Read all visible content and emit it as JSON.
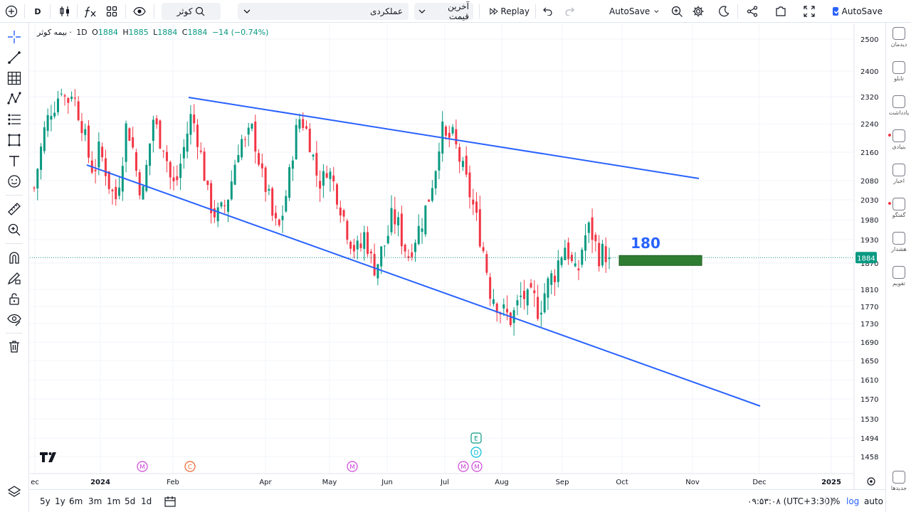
{
  "toolbar": {
    "add_symbol_icon": "plus-circle-icon",
    "interval": "D",
    "symbol_search": "کوثر",
    "study_name": "عملکردی",
    "price_source": "آخرین قیمت",
    "replay": "Replay",
    "autosave": "AutoSave",
    "autosave_checkbox_label": "AutoSave"
  },
  "legend": {
    "symbol": "بیمه کوثر",
    "interval": "1D",
    "o_label": "O",
    "o_value": "1884",
    "h_label": "H",
    "h_value": "1885",
    "l_label": "L",
    "l_value": "1884",
    "c_label": "C",
    "c_value": "1884",
    "change": "−14 (−0.74%)"
  },
  "right_sidebar": [
    {
      "label": "دیدمان",
      "icon": "watchlist-icon"
    },
    {
      "label": "تابلو",
      "icon": "board-icon"
    },
    {
      "label": "یادداشت",
      "icon": "note-icon"
    },
    {
      "label": "بنیادی",
      "icon": "fundamental-icon"
    },
    {
      "label": "اخبار",
      "icon": "news-icon"
    },
    {
      "label": "گفتگو",
      "icon": "chat-icon"
    },
    {
      "label": "هشدار",
      "icon": "alert-icon"
    },
    {
      "label": "تقویم",
      "icon": "calendar-icon"
    },
    {
      "label": "جدیدها",
      "icon": "whats-new-icon"
    }
  ],
  "bottom_bar": {
    "ranges": [
      "5y",
      "1y",
      "6m",
      "3m",
      "1m",
      "5d",
      "1d"
    ],
    "clock": "۰۹:۵۳:۰۸ (UTC+3:30)",
    "percent": "%",
    "log": "log",
    "auto": "auto"
  },
  "colors": {
    "up": "#089981",
    "down": "#f23645",
    "trendline": "#2962ff",
    "target_box": "#2e7d32",
    "price_label_bg": "#089981",
    "grid": "#f0f3fa"
  },
  "chart_data": {
    "type": "candlestick",
    "symbol": "بیمه کوثر",
    "interval": "1D",
    "last_price": 1884,
    "last_price_label": "1884",
    "y_ticks": [
      "2500",
      "2400",
      "2320",
      "2240",
      "2160",
      "2080",
      "2030",
      "1980",
      "1930",
      "1870",
      "1810",
      "1770",
      "1730",
      "1690",
      "1650",
      "1610",
      "1570",
      "1530",
      "1494",
      "1458"
    ],
    "x_ticks": [
      "ec",
      "2024",
      "Feb",
      "Apr",
      "May",
      "Jun",
      "Jul",
      "Aug",
      "Sep",
      "Oct",
      "Nov",
      "Dec",
      "2025"
    ],
    "annotation_text": "180",
    "target_box": {
      "from_price": 1884,
      "to_price": 1870,
      "start": "Oct",
      "end": "Nov"
    },
    "trendlines": [
      {
        "name": "upper-channel",
        "from": {
          "date": "Mar",
          "price": 2310
        },
        "to": {
          "date": "Nov",
          "price": 2085
        }
      },
      {
        "name": "lower-channel",
        "from": {
          "date": "Dec-2023",
          "price": 2140
        },
        "to": {
          "date": "Dec",
          "price": 1560
        }
      }
    ],
    "event_markers": [
      {
        "label": "M",
        "date": "Jan",
        "kind": "dividend"
      },
      {
        "label": "C",
        "date": "Feb",
        "kind": "corporate"
      },
      {
        "label": "M",
        "date": "May",
        "kind": "dividend"
      },
      {
        "label": "E",
        "date": "Jul",
        "kind": "earnings"
      },
      {
        "label": "D",
        "date": "Jul",
        "kind": "dividend"
      },
      {
        "label": "M",
        "date": "Jul",
        "kind": "dividend"
      },
      {
        "label": "M",
        "date": "Jul",
        "kind": "dividend"
      }
    ],
    "price_path": [
      2060,
      2150,
      2230,
      2280,
      2300,
      2350,
      2300,
      2340,
      2280,
      2230,
      2150,
      2100,
      2170,
      2120,
      2060,
      2030,
      2110,
      2240,
      2190,
      2090,
      2040,
      2150,
      2260,
      2200,
      2180,
      2090,
      2060,
      2130,
      2200,
      2270,
      2210,
      2130,
      2040,
      2000,
      1990,
      2010,
      2050,
      2130,
      2200,
      2180,
      2230,
      2170,
      2090,
      2050,
      1980,
      1950,
      2010,
      2090,
      2200,
      2260,
      2230,
      2180,
      2100,
      2070,
      2120,
      2080,
      2040,
      1990,
      1940,
      1910,
      1900,
      1950,
      1880,
      1860,
      1900,
      1930,
      1990,
      1970,
      1920,
      1890,
      1930,
      1960,
      2000,
      2050,
      2120,
      2230,
      2190,
      2210,
      2160,
      2110,
      2060,
      2010,
      1950,
      1890,
      1810,
      1790,
      1760,
      1750,
      1740,
      1770,
      1800,
      1780,
      1790,
      1760,
      1800,
      1830,
      1850,
      1890,
      1920,
      1870,
      1830,
      1910,
      1960,
      1940,
      1890,
      1900,
      1884
    ],
    "price_axis_min": 1458,
    "price_axis_max": 2500
  }
}
